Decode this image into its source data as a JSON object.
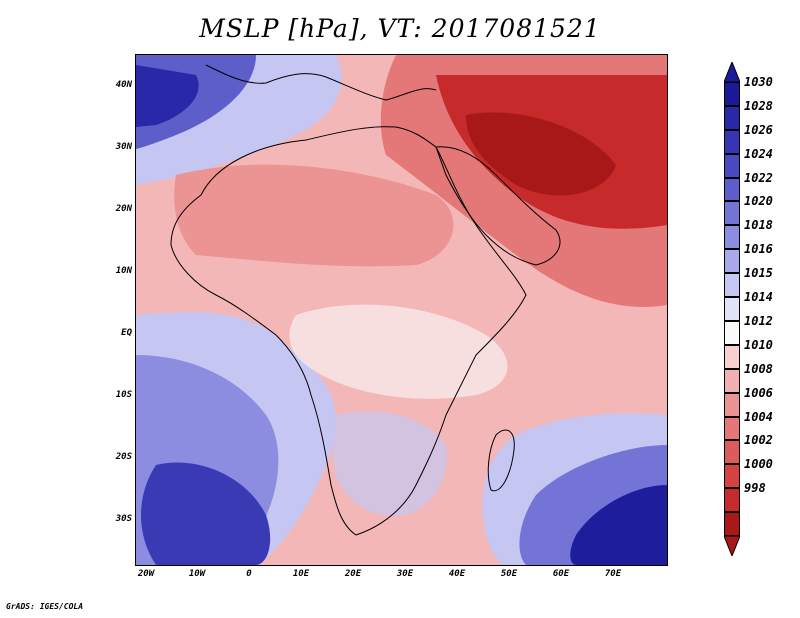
{
  "title": "MSLP [hPa], VT: 2017081521",
  "credit": "GrADS: IGES/COLA",
  "axes": {
    "lat_labels": [
      "40N",
      "30N",
      "20N",
      "10N",
      "EQ",
      "10S",
      "20S",
      "30S"
    ],
    "lon_labels": [
      "20W",
      "10W",
      "0",
      "10E",
      "20E",
      "30E",
      "40E",
      "50E",
      "60E",
      "70E"
    ]
  },
  "legend": {
    "levels": [
      "1030",
      "1028",
      "1026",
      "1024",
      "1022",
      "1020",
      "1018",
      "1016",
      "1015",
      "1014",
      "1012",
      "1010",
      "1008",
      "1006",
      "1004",
      "1002",
      "1000",
      "998"
    ],
    "colors": [
      "#1a1a99",
      "#2828a8",
      "#3636b4",
      "#4a4ac0",
      "#5e5ecb",
      "#7474d6",
      "#8c8ce0",
      "#a8a8ea",
      "#c6c6f2",
      "#e2e2f8",
      "#fafafa",
      "#f8d0d0",
      "#f2b0b0",
      "#ec9494",
      "#e47878",
      "#dc5c5c",
      "#d44242",
      "#c62a2a",
      "#a81818"
    ]
  },
  "colors": {
    "low_pressure": "#b41c1c",
    "high_pressure": "#1e1e9c",
    "neutral": "#fafafa"
  }
}
